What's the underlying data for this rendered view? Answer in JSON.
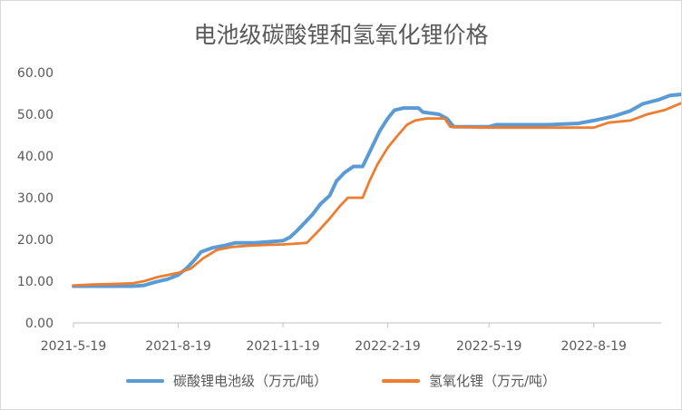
{
  "chart_data": {
    "type": "line",
    "title": "电池级碳酸锂和氢氧化锂价格",
    "xlabel": "",
    "ylabel": "",
    "ylim": [
      0,
      60
    ],
    "y_ticks": [
      "0.00",
      "10.00",
      "20.00",
      "30.00",
      "40.00",
      "50.00",
      "60.00"
    ],
    "x_ticks": [
      "2021-5-19",
      "2021-8-19",
      "2021-11-19",
      "2022-2-19",
      "2022-5-19",
      "2022-8-19"
    ],
    "x_range": [
      "2021-05-19",
      "2022-11-05"
    ],
    "grid": "none",
    "legend_position": "bottom",
    "series": [
      {
        "name": "碳酸锂电池级（万元/吨）",
        "color": "#5b9bd5",
        "points": [
          [
            "2021-05-19",
            8.8
          ],
          [
            "2021-06-15",
            8.8
          ],
          [
            "2021-07-10",
            8.8
          ],
          [
            "2021-07-20",
            9.0
          ],
          [
            "2021-07-30",
            9.8
          ],
          [
            "2021-08-10",
            10.5
          ],
          [
            "2021-08-19",
            11.5
          ],
          [
            "2021-08-26",
            13.0
          ],
          [
            "2021-09-02",
            15.0
          ],
          [
            "2021-09-08",
            17.0
          ],
          [
            "2021-09-18",
            18.0
          ],
          [
            "2021-09-28",
            18.5
          ],
          [
            "2021-10-08",
            19.2
          ],
          [
            "2021-10-25",
            19.2
          ],
          [
            "2021-11-10",
            19.5
          ],
          [
            "2021-11-19",
            19.7
          ],
          [
            "2021-11-25",
            20.5
          ],
          [
            "2021-12-01",
            22.0
          ],
          [
            "2021-12-08",
            24.0
          ],
          [
            "2021-12-15",
            26.0
          ],
          [
            "2021-12-22",
            28.5
          ],
          [
            "2021-12-30",
            30.5
          ],
          [
            "2022-01-05",
            34.0
          ],
          [
            "2022-01-12",
            36.0
          ],
          [
            "2022-01-20",
            37.5
          ],
          [
            "2022-01-28",
            37.5
          ],
          [
            "2022-02-05",
            42.0
          ],
          [
            "2022-02-12",
            46.0
          ],
          [
            "2022-02-19",
            49.0
          ],
          [
            "2022-02-25",
            51.0
          ],
          [
            "2022-03-05",
            51.5
          ],
          [
            "2022-03-18",
            51.5
          ],
          [
            "2022-03-22",
            50.5
          ],
          [
            "2022-04-05",
            50.0
          ],
          [
            "2022-04-12",
            49.0
          ],
          [
            "2022-04-18",
            47.0
          ],
          [
            "2022-05-19",
            47.0
          ],
          [
            "2022-05-25",
            47.5
          ],
          [
            "2022-07-10",
            47.5
          ],
          [
            "2022-08-05",
            47.8
          ],
          [
            "2022-08-19",
            48.5
          ],
          [
            "2022-09-05",
            49.5
          ],
          [
            "2022-09-20",
            50.8
          ],
          [
            "2022-10-01",
            52.5
          ],
          [
            "2022-10-15",
            53.5
          ],
          [
            "2022-10-25",
            54.5
          ],
          [
            "2022-11-05",
            54.8
          ]
        ]
      },
      {
        "name": "氢氧化锂（万元/吨）",
        "color": "#ed7d31",
        "points": [
          [
            "2021-05-19",
            9.0
          ],
          [
            "2021-06-05",
            9.2
          ],
          [
            "2021-06-20",
            9.3
          ],
          [
            "2021-07-10",
            9.5
          ],
          [
            "2021-07-20",
            10.0
          ],
          [
            "2021-08-01",
            11.0
          ],
          [
            "2021-08-10",
            11.5
          ],
          [
            "2021-08-19",
            12.0
          ],
          [
            "2021-08-30",
            13.0
          ],
          [
            "2021-09-10",
            15.5
          ],
          [
            "2021-09-22",
            17.5
          ],
          [
            "2021-10-05",
            18.2
          ],
          [
            "2021-10-20",
            18.5
          ],
          [
            "2021-11-05",
            18.7
          ],
          [
            "2021-11-19",
            18.8
          ],
          [
            "2021-11-30",
            19.0
          ],
          [
            "2021-12-10",
            19.2
          ],
          [
            "2021-12-20",
            22.0
          ],
          [
            "2021-12-30",
            25.0
          ],
          [
            "2022-01-08",
            28.0
          ],
          [
            "2022-01-15",
            30.0
          ],
          [
            "2022-01-28",
            30.0
          ],
          [
            "2022-02-03",
            34.0
          ],
          [
            "2022-02-10",
            38.0
          ],
          [
            "2022-02-19",
            42.0
          ],
          [
            "2022-02-28",
            45.0
          ],
          [
            "2022-03-08",
            47.5
          ],
          [
            "2022-03-15",
            48.5
          ],
          [
            "2022-03-25",
            49.0
          ],
          [
            "2022-04-10",
            49.0
          ],
          [
            "2022-04-15",
            47.0
          ],
          [
            "2022-05-19",
            46.8
          ],
          [
            "2022-08-19",
            46.8
          ],
          [
            "2022-09-01",
            48.0
          ],
          [
            "2022-09-20",
            48.5
          ],
          [
            "2022-10-05",
            50.0
          ],
          [
            "2022-10-20",
            51.0
          ],
          [
            "2022-11-05",
            52.8
          ]
        ]
      }
    ]
  }
}
